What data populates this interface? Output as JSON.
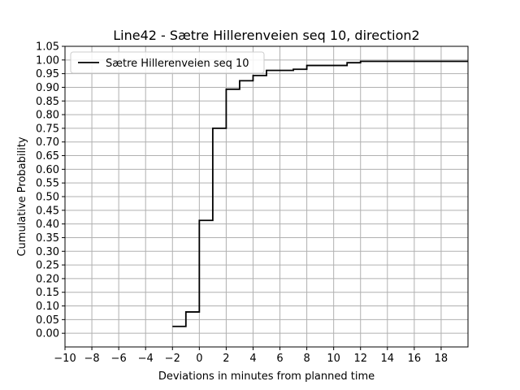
{
  "chart_data": {
    "type": "line",
    "step": "post",
    "title": "Line42 - Sætre Hillerenveien seq 10, direction2",
    "xlabel": "Deviations in minutes from planned time",
    "ylabel": "Cumulative Probability",
    "xlim": [
      -10,
      20
    ],
    "ylim": [
      -0.05,
      1.05
    ],
    "xticks": [
      -10,
      -8,
      -6,
      -4,
      -2,
      0,
      2,
      4,
      6,
      8,
      10,
      12,
      14,
      16,
      18
    ],
    "xtick_labels": [
      "−10",
      "−8",
      "−6",
      "−4",
      "−2",
      "0",
      "2",
      "4",
      "6",
      "8",
      "10",
      "12",
      "14",
      "16",
      "18"
    ],
    "yticks": [
      0.0,
      0.05,
      0.1,
      0.15,
      0.2,
      0.25,
      0.3,
      0.35,
      0.4,
      0.45,
      0.5,
      0.55,
      0.6,
      0.65,
      0.7,
      0.75,
      0.8,
      0.85,
      0.9,
      0.95,
      1.0,
      1.05
    ],
    "ytick_labels": [
      "0.00",
      "0.05",
      "0.10",
      "0.15",
      "0.20",
      "0.25",
      "0.30",
      "0.35",
      "0.40",
      "0.45",
      "0.50",
      "0.55",
      "0.60",
      "0.65",
      "0.70",
      "0.75",
      "0.80",
      "0.85",
      "0.90",
      "0.95",
      "1.00",
      "1.05"
    ],
    "grid": true,
    "legend": {
      "position": "top-left",
      "entries": [
        "Sætre Hillerenveien seq 10"
      ]
    },
    "series": [
      {
        "name": "Sætre Hillerenveien seq 10",
        "color": "#000000",
        "x": [
          -2,
          -1,
          0,
          1,
          2,
          3,
          4,
          5,
          7,
          8,
          11,
          12,
          20
        ],
        "y": [
          0.025,
          0.078,
          0.413,
          0.75,
          0.893,
          0.924,
          0.943,
          0.962,
          0.966,
          0.98,
          0.99,
          0.995,
          0.995
        ]
      }
    ]
  }
}
